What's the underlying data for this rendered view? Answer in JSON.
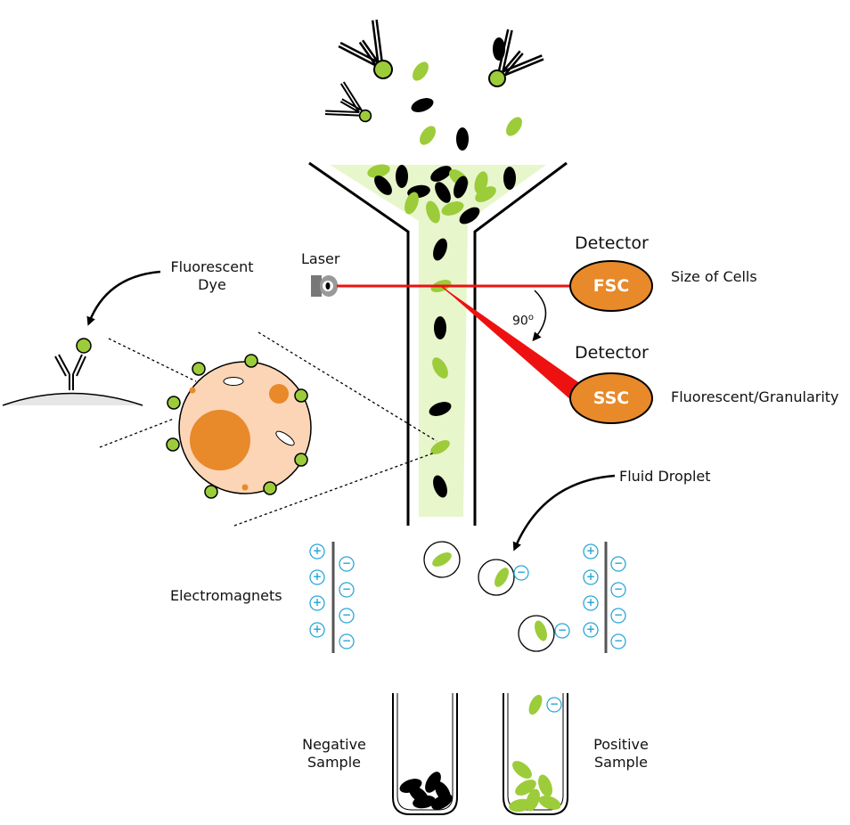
{
  "labels": {
    "fluorescent_dye": "Fluorescent\nDye",
    "laser": "Laser",
    "detector_fsc": "Detector",
    "detector_ssc": "Detector",
    "fsc": "FSC",
    "ssc": "SSC",
    "size_of_cells": "Size of Cells",
    "fluorescent_granularity": "Fluorescent/Granularity",
    "angle": "90",
    "angle_unit": "o",
    "fluid_droplet": "Fluid Droplet",
    "electromagnets": "Electromagnets",
    "negative_sample": "Negative\nSample",
    "positive_sample": "Positive\nSample"
  },
  "symbols": {
    "plus": "+",
    "minus": "−"
  },
  "colors": {
    "cell_green": "#9ccc3a",
    "cell_black": "#000000",
    "stream": "#e8f6cc",
    "laser": "#ee1111",
    "detector": "#e8892a",
    "cell_body": "#fbd5b5",
    "nucleus": "#e8892a",
    "charge": "#2aa7d8",
    "plate": "#555555"
  }
}
